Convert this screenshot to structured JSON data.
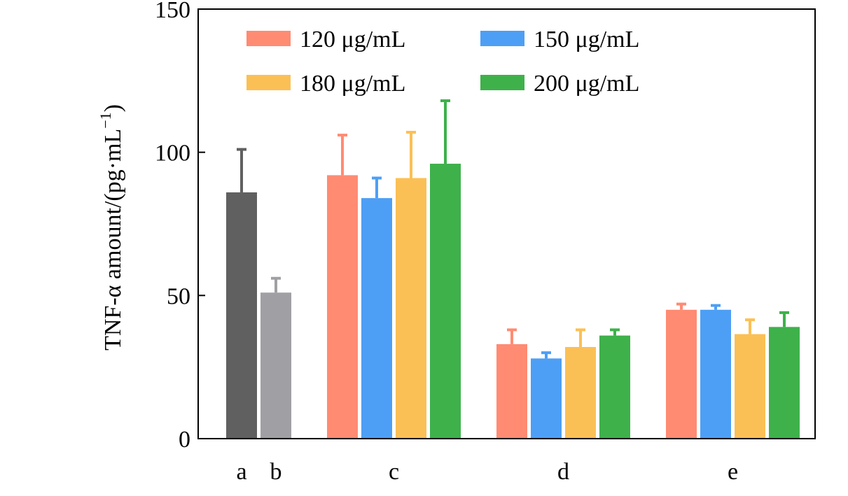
{
  "chart_data": {
    "type": "bar",
    "title": "",
    "xlabel": "",
    "ylabel": "TNF-α amount/(pg·mL",
    "ylabel_superscript": "−1",
    "ylabel_close": ")",
    "ylim": [
      0,
      150
    ],
    "yticks": [
      0,
      50,
      100,
      150
    ],
    "ytick_labels": [
      "0",
      "50",
      "100",
      "150"
    ],
    "grid": false,
    "legend_position": "top",
    "controls": [
      {
        "category": "a",
        "value": 86,
        "error": 15,
        "color": "#606060"
      },
      {
        "category": "b",
        "value": 51,
        "error": 5,
        "color": "#a0a0a4"
      }
    ],
    "groups": [
      "c",
      "d",
      "e"
    ],
    "series": [
      {
        "name": "120 μg/mL",
        "color": "#ff8b73",
        "values": [
          92,
          33,
          45
        ],
        "errors": [
          14,
          5,
          2
        ]
      },
      {
        "name": "150 μg/mL",
        "color": "#4d9ff5",
        "values": [
          84,
          28,
          45
        ],
        "errors": [
          7,
          2,
          1.5
        ]
      },
      {
        "name": "180 μg/mL",
        "color": "#fbc055",
        "values": [
          91,
          32,
          36.5
        ],
        "errors": [
          16,
          6,
          5
        ]
      },
      {
        "name": "200 μg/mL",
        "color": "#3eb14b",
        "values": [
          96,
          36,
          39
        ],
        "errors": [
          22,
          2,
          5
        ]
      }
    ]
  }
}
